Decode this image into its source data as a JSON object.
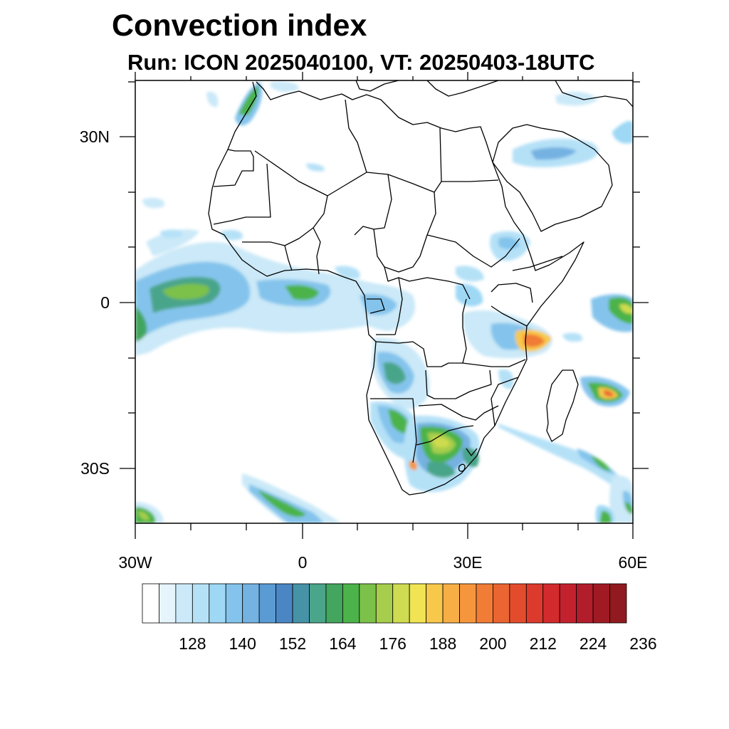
{
  "title": "Convection index",
  "subtitle": "Run: ICON 2025040100,  VT: 20250403-18UTC",
  "axes": {
    "lon_labels": [
      "30W",
      "0",
      "30E",
      "60E"
    ],
    "lat_labels": [
      "30N",
      "0",
      "30S"
    ]
  },
  "colorbar": {
    "tick_labels": [
      "128",
      "140",
      "152",
      "164",
      "176",
      "188",
      "200",
      "212",
      "224",
      "236"
    ],
    "colors": [
      "#ffffff",
      "#e6f4fb",
      "#cbe9f8",
      "#b5e1f7",
      "#9ed8f5",
      "#84c4ec",
      "#74b2e2",
      "#5b9bd4",
      "#4a86c4",
      "#4692a6",
      "#4aa58a",
      "#43a55e",
      "#4bb34a",
      "#7cc14a",
      "#a6cd4c",
      "#cfdb50",
      "#f1e454",
      "#f8c84a",
      "#f6ae45",
      "#f5963d",
      "#f07c36",
      "#ea6531",
      "#e24c2d",
      "#dc3a2c",
      "#d22a2d",
      "#c4212e",
      "#b21d2b",
      "#a01a23",
      "#901a1f"
    ]
  }
}
